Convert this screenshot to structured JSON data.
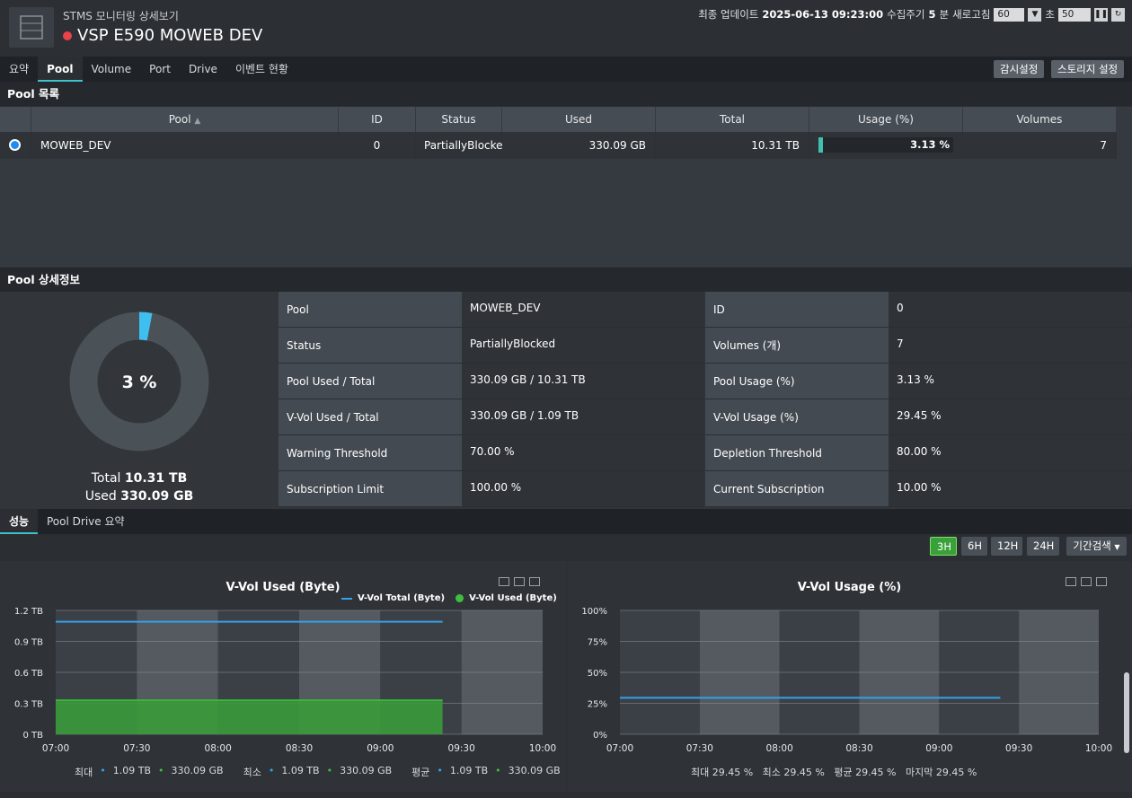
{
  "header": {
    "subtitle": "STMS 모니터링 상세보기",
    "title": "VSP E590 MOWEB DEV",
    "last_update_label": "최종 업데이트",
    "last_update": "2025-06-13 09:23:00",
    "interval_label": "수집주기",
    "interval_value": "5",
    "interval_unit": "분",
    "refresh_label": "새로고침",
    "refresh_select": "60",
    "refresh_unit": "초",
    "refresh_value": "50"
  },
  "tabs": [
    "요약",
    "Pool",
    "Volume",
    "Port",
    "Drive",
    "이벤트 현황"
  ],
  "buttons": {
    "monitor_settings": "감시설정",
    "storage_settings": "스토리지 설정"
  },
  "pool_list": {
    "title": "Pool 목록",
    "columns": [
      "Pool",
      "ID",
      "Status",
      "Used",
      "Total",
      "Usage (%)",
      "Volumes"
    ],
    "rows": [
      {
        "pool": "MOWEB_DEV",
        "id": "0",
        "status": "PartiallyBlocked",
        "used": "330.09 GB",
        "total": "10.31 TB",
        "usage": "3.13 %",
        "usage_value": 3.13,
        "volumes": "7"
      }
    ]
  },
  "pool_detail": {
    "title": "Pool 상세정보",
    "donut_value": 3,
    "donut_label": "3 %",
    "total_label": "Total",
    "total": "10.31 TB",
    "used_label": "Used",
    "used": "330.09 GB",
    "fields": [
      {
        "k1": "Pool",
        "v1": "MOWEB_DEV",
        "k2": "ID",
        "v2": "0"
      },
      {
        "k1": "Status",
        "v1": "PartiallyBlocked",
        "k2": "Volumes (개)",
        "v2": "7"
      },
      {
        "k1": "Pool Used / Total",
        "v1": "330.09 GB / 10.31 TB",
        "k2": "Pool Usage (%)",
        "v2": "3.13 %"
      },
      {
        "k1": "V-Vol Used / Total",
        "v1": "330.09 GB / 1.09 TB",
        "k2": "V-Vol Usage (%)",
        "v2": "29.45 %"
      },
      {
        "k1": "Warning Threshold",
        "v1": "70.00 %",
        "k2": "Depletion Threshold",
        "v2": "80.00 %"
      },
      {
        "k1": "Subscription Limit",
        "v1": "100.00 %",
        "k2": "Current Subscription",
        "v2": "10.00 %"
      }
    ]
  },
  "perf_tabs": [
    "성능",
    "Pool Drive 요약"
  ],
  "range_buttons": [
    "3H",
    "6H",
    "12H",
    "24H"
  ],
  "range_active": "3H",
  "period_search": "기간검색",
  "chart_data": [
    {
      "type": "area",
      "title": "V-Vol Used (Byte)",
      "x": [
        "07:00",
        "07:30",
        "08:00",
        "08:30",
        "09:00",
        "09:30",
        "10:00"
      ],
      "yticks": [
        "0 TB",
        "0.3 TB",
        "0.6 TB",
        "0.9 TB",
        "1.2 TB"
      ],
      "ylim": [
        0,
        1.2
      ],
      "series": [
        {
          "name": "V-Vol Total (Byte)",
          "style": "line",
          "color": "#35a1e6",
          "value": 1.09,
          "x_end": "09:23"
        },
        {
          "name": "V-Vol Used (Byte)",
          "style": "area",
          "color": "#3a9a3a",
          "value": 0.33,
          "x_end": "09:23"
        }
      ],
      "stats": [
        {
          "label": "최대",
          "b": "1.09 TB",
          "g": "330.09 GB"
        },
        {
          "label": "최소",
          "b": "1.09 TB",
          "g": "330.09 GB"
        },
        {
          "label": "평균",
          "b": "1.09 TB",
          "g": "330.09 GB"
        }
      ]
    },
    {
      "type": "line",
      "title": "V-Vol Usage (%)",
      "x": [
        "07:00",
        "07:30",
        "08:00",
        "08:30",
        "09:00",
        "09:30",
        "10:00"
      ],
      "yticks": [
        "0%",
        "25%",
        "50%",
        "75%",
        "100%"
      ],
      "ylim": [
        0,
        100
      ],
      "series": [
        {
          "style": "line",
          "color": "#35a1e6",
          "value": 29.45,
          "x_end": "09:23"
        }
      ],
      "stats": "최대 29.45 %   최소 29.45 %   평균 29.45 %   마지막 29.45 %"
    }
  ]
}
